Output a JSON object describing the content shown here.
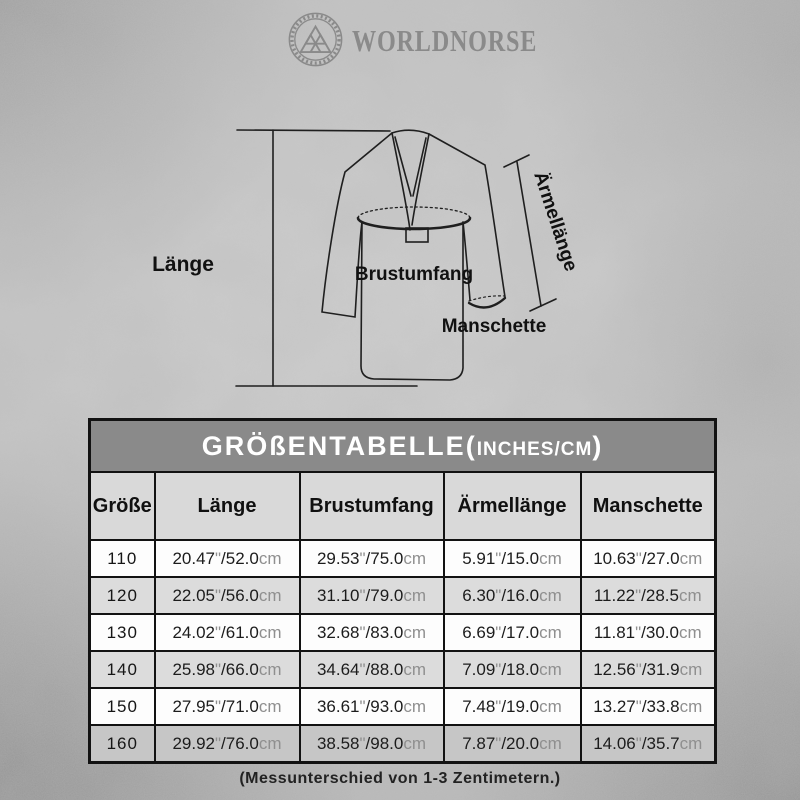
{
  "brand": {
    "name": "WORLDNORSE",
    "logo": "valknut-emblem"
  },
  "diagram": {
    "length_label": "Länge",
    "chest_label": "Brustumfang",
    "sleeve_label": "Ärmellänge",
    "cuff_label": "Manschette"
  },
  "table": {
    "title_main": "GRÖßENTABELLE",
    "title_open": "(",
    "title_unit": "INCHES/CM",
    "title_close": ")",
    "columns": [
      "Größe",
      "Länge",
      "Brustumfang",
      "Ärmellänge",
      "Manschette"
    ],
    "units": {
      "inch_mark": "\"",
      "sep": "/",
      "cm": "cm"
    },
    "rows": [
      {
        "size": "110",
        "values": [
          {
            "in": "20.47",
            "cm": "52.0"
          },
          {
            "in": "29.53",
            "cm": "75.0"
          },
          {
            "in": "5.91",
            "cm": "15.0"
          },
          {
            "in": "10.63",
            "cm": "27.0"
          }
        ]
      },
      {
        "size": "120",
        "values": [
          {
            "in": "22.05",
            "cm": "56.0"
          },
          {
            "in": "31.10",
            "cm": "79.0"
          },
          {
            "in": "6.30",
            "cm": "16.0"
          },
          {
            "in": "11.22",
            "cm": "28.5"
          }
        ]
      },
      {
        "size": "130",
        "values": [
          {
            "in": "24.02",
            "cm": "61.0"
          },
          {
            "in": "32.68",
            "cm": "83.0"
          },
          {
            "in": "6.69",
            "cm": "17.0"
          },
          {
            "in": "11.81",
            "cm": "30.0"
          }
        ]
      },
      {
        "size": "140",
        "values": [
          {
            "in": "25.98",
            "cm": "66.0"
          },
          {
            "in": "34.64",
            "cm": "88.0"
          },
          {
            "in": "7.09",
            "cm": "18.0"
          },
          {
            "in": "12.56",
            "cm": "31.9"
          }
        ]
      },
      {
        "size": "150",
        "values": [
          {
            "in": "27.95",
            "cm": "71.0"
          },
          {
            "in": "36.61",
            "cm": "93.0"
          },
          {
            "in": "7.48",
            "cm": "19.0"
          },
          {
            "in": "13.27",
            "cm": "33.8"
          }
        ]
      },
      {
        "size": "160",
        "values": [
          {
            "in": "29.92",
            "cm": "76.0"
          },
          {
            "in": "38.58",
            "cm": "98.0"
          },
          {
            "in": "7.87",
            "cm": "20.0"
          },
          {
            "in": "14.06",
            "cm": "35.7"
          }
        ]
      }
    ]
  },
  "footer": {
    "note": "(Messunterschied von 1-3 Zentimetern.)"
  },
  "colors": {
    "title_bar": "#8a8a8a",
    "header_row": "#d9d9d9",
    "row_white": "#fdfdfd",
    "row_gray": "#dcdcdc",
    "row_dark": "#c6c6c6",
    "unit_text": "#8f8f8f",
    "brand_gray": "#8a8a8a",
    "border": "#121212"
  },
  "chart_data": {
    "type": "table",
    "title": "GRÖßENTABELLE (INCHES/CM)",
    "columns": [
      "Größe",
      "Länge",
      "Brustumfang",
      "Ärmellänge",
      "Manschette"
    ],
    "rows": [
      [
        "110",
        "20.47\"/52.0cm",
        "29.53\"/75.0cm",
        "5.91\"/15.0cm",
        "10.63\"/27.0cm"
      ],
      [
        "120",
        "22.05\"/56.0cm",
        "31.10\"/79.0cm",
        "6.30\"/16.0cm",
        "11.22\"/28.5cm"
      ],
      [
        "130",
        "24.02\"/61.0cm",
        "32.68\"/83.0cm",
        "6.69\"/17.0cm",
        "11.81\"/30.0cm"
      ],
      [
        "140",
        "25.98\"/66.0cm",
        "34.64\"/88.0cm",
        "7.09\"/18.0cm",
        "12.56\"/31.9cm"
      ],
      [
        "150",
        "27.95\"/71.0cm",
        "36.61\"/93.0cm",
        "7.48\"/19.0cm",
        "13.27\"/33.8cm"
      ],
      [
        "160",
        "29.92\"/76.0cm",
        "38.58\"/98.0cm",
        "7.87\"/20.0cm",
        "14.06\"/35.7cm"
      ]
    ],
    "note": "(Messunterschied von 1-3 Zentimetern.)"
  }
}
